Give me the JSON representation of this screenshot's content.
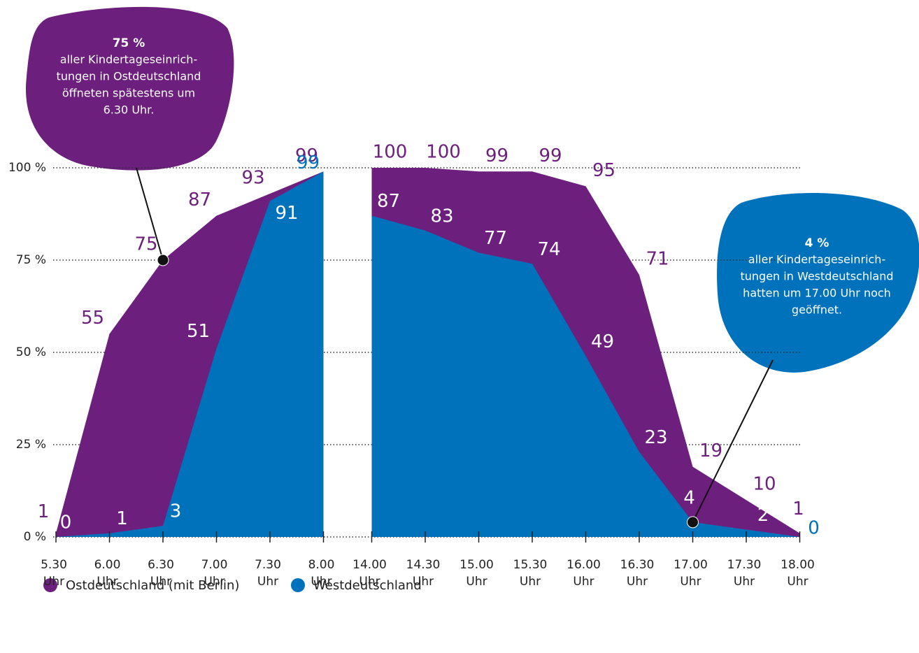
{
  "chart_data": {
    "type": "area",
    "categories": [
      "5.30 Uhr",
      "6.00 Uhr",
      "6.30 Uhr",
      "7.00 Uhr",
      "7.30 Uhr",
      "8.00 Uhr",
      "14.00 Uhr",
      "14.30 Uhr",
      "15.00 Uhr",
      "15.30 Uhr",
      "16.00 Uhr",
      "16.30 Uhr",
      "17.00 Uhr",
      "17.30 Uhr",
      "18.00 Uhr"
    ],
    "series": [
      {
        "name": "Ostdeutschland (mit Berlin)",
        "color": "#6d1f7e",
        "values": [
          1,
          55,
          75,
          87,
          93,
          99,
          100,
          100,
          99,
          99,
          95,
          71,
          19,
          10,
          1
        ]
      },
      {
        "name": "Westdeutschland",
        "color": "#0072bc",
        "values": [
          0,
          1,
          3,
          51,
          91,
          99,
          87,
          83,
          77,
          74,
          49,
          23,
          4,
          2,
          0
        ]
      }
    ],
    "ylim": [
      0,
      100
    ],
    "yticks": [
      {
        "value": 0,
        "label": "0 %"
      },
      {
        "value": 25,
        "label": "25 %"
      },
      {
        "value": 50,
        "label": "50 %"
      },
      {
        "value": 75,
        "label": "75 %"
      },
      {
        "value": 100,
        "label": "100 %"
      }
    ],
    "grid": true,
    "annotations": [
      {
        "title": "75 %",
        "lines": [
          "aller Kindertageseinrich-",
          "tungen in Ostdeutschland",
          "öffneten spätestens um",
          "6.30 Uhr."
        ]
      },
      {
        "title": "4 %",
        "lines": [
          "aller Kindertageseinrich-",
          "tungen in Westdeutschland",
          "hatten um 17.00 Uhr noch",
          "geöffnet."
        ]
      }
    ]
  }
}
